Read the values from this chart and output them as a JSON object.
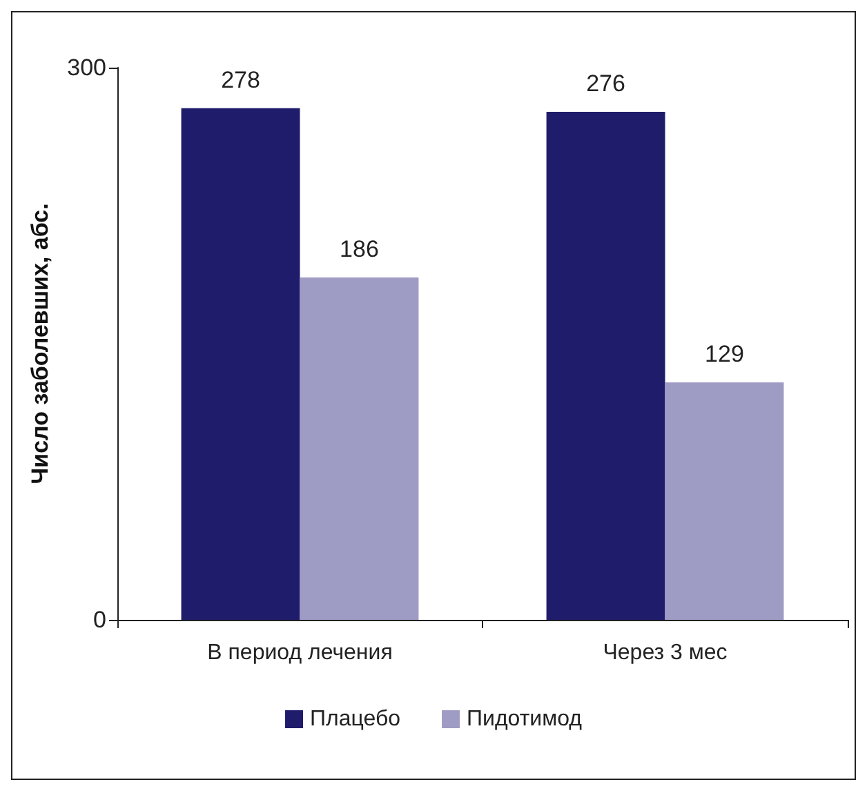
{
  "chart_data": {
    "type": "bar",
    "ylabel": "Число заболевших, абс.",
    "categories": [
      "В период лечения",
      "Через 3 мес"
    ],
    "series": [
      {
        "name": "Плацебо",
        "color": "#1f1c6b",
        "values": [
          278,
          276
        ]
      },
      {
        "name": "Пидотимод",
        "color": "#9e9cc4",
        "values": [
          186,
          129
        ]
      }
    ],
    "ylim": [
      0,
      300
    ],
    "yticks": [
      0,
      300
    ],
    "data_labels": true,
    "legend": "bottom",
    "grid": false
  }
}
